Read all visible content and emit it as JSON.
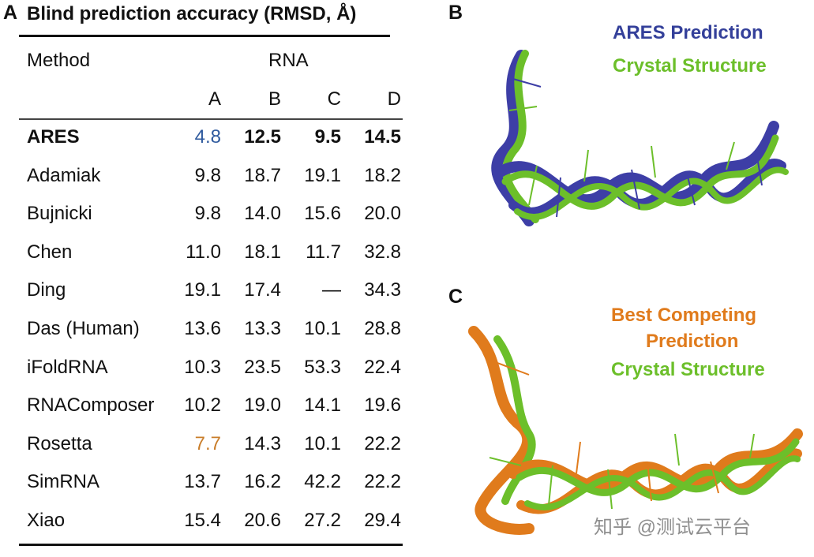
{
  "panel_a": {
    "letter": "A",
    "title": "Blind prediction accuracy (RMSD, Å)",
    "method_header": "Method",
    "rna_header": "RNA",
    "columns": [
      "A",
      "B",
      "C",
      "D"
    ],
    "rows": [
      {
        "method": "ARES",
        "values": [
          "4.8",
          "12.5",
          "9.5",
          "14.5"
        ]
      },
      {
        "method": "Adamiak",
        "values": [
          "9.8",
          "18.7",
          "19.1",
          "18.2"
        ]
      },
      {
        "method": "Bujnicki",
        "values": [
          "9.8",
          "14.0",
          "15.6",
          "20.0"
        ]
      },
      {
        "method": "Chen",
        "values": [
          "11.0",
          "18.1",
          "11.7",
          "32.8"
        ]
      },
      {
        "method": "Ding",
        "values": [
          "19.1",
          "17.4",
          "—",
          "34.3"
        ]
      },
      {
        "method": "Das (Human)",
        "values": [
          "13.6",
          "13.3",
          "10.1",
          "28.8"
        ]
      },
      {
        "method": "iFoldRNA",
        "values": [
          "10.3",
          "23.5",
          "53.3",
          "22.4"
        ]
      },
      {
        "method": "RNAComposer",
        "values": [
          "10.2",
          "19.0",
          "14.1",
          "19.6"
        ]
      },
      {
        "method": "Rosetta",
        "values": [
          "7.7",
          "14.3",
          "10.1",
          "22.2"
        ]
      },
      {
        "method": "SimRNA",
        "values": [
          "13.7",
          "16.2",
          "42.2",
          "22.2"
        ]
      },
      {
        "method": "Xiao",
        "values": [
          "15.4",
          "20.6",
          "27.2",
          "29.4"
        ]
      }
    ],
    "highlight_colors": {
      "ares_a": "#2f5a9e",
      "rosetta_a": "#c97d2a"
    }
  },
  "panel_b": {
    "letter": "B",
    "legend": [
      "ARES Prediction",
      "Crystal Structure"
    ],
    "colors": {
      "prediction": "#3d3ea6",
      "crystal": "#6cbf2a"
    }
  },
  "panel_c": {
    "letter": "C",
    "legend": [
      "Best Competing",
      "Prediction",
      "Crystal Structure"
    ],
    "colors": {
      "prediction": "#e07b1c",
      "crystal": "#6cbf2a"
    }
  },
  "watermark": "知乎 @测试云平台"
}
